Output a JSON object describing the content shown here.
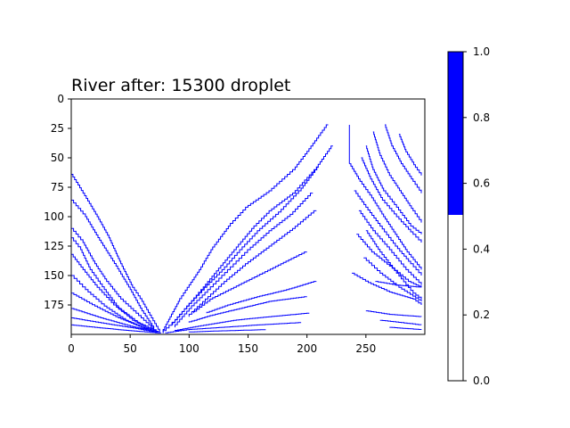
{
  "chart_data": {
    "type": "heatmap",
    "title": "River after: 15300 droplet",
    "xlabel": "",
    "ylabel": "",
    "xlim": [
      0,
      300
    ],
    "ylim": [
      200,
      0
    ],
    "x_ticks": [
      0,
      50,
      100,
      150,
      200,
      250
    ],
    "y_ticks": [
      0,
      25,
      50,
      75,
      100,
      125,
      150,
      175
    ],
    "grid": false,
    "colormap": {
      "colors": [
        "#ffffff",
        "#0000ff"
      ],
      "boundary": 0.5
    },
    "colorbar": {
      "range": [
        0.0,
        1.0
      ],
      "ticks": [
        "0.0",
        "0.2",
        "0.4",
        "0.6",
        "0.8",
        "1.0"
      ]
    },
    "river_paths": [
      [
        [
          0,
          64
        ],
        [
          10,
          80
        ],
        [
          22,
          100
        ],
        [
          32,
          118
        ],
        [
          42,
          140
        ],
        [
          52,
          160
        ],
        [
          60,
          172
        ],
        [
          68,
          186
        ],
        [
          75,
          198
        ]
      ],
      [
        [
          0,
          86
        ],
        [
          12,
          100
        ],
        [
          24,
          120
        ],
        [
          38,
          142
        ],
        [
          50,
          162
        ],
        [
          60,
          180
        ],
        [
          70,
          195
        ]
      ],
      [
        [
          0,
          110
        ],
        [
          10,
          122
        ],
        [
          20,
          140
        ],
        [
          30,
          155
        ],
        [
          42,
          170
        ],
        [
          55,
          182
        ],
        [
          70,
          196
        ]
      ],
      [
        [
          0,
          118
        ],
        [
          8,
          128
        ],
        [
          16,
          145
        ],
        [
          28,
          162
        ],
        [
          40,
          178
        ],
        [
          56,
          190
        ],
        [
          72,
          197
        ]
      ],
      [
        [
          0,
          132
        ],
        [
          10,
          145
        ],
        [
          22,
          160
        ],
        [
          36,
          175
        ],
        [
          52,
          188
        ],
        [
          68,
          197
        ]
      ],
      [
        [
          0,
          150
        ],
        [
          12,
          162
        ],
        [
          28,
          176
        ],
        [
          46,
          188
        ],
        [
          64,
          196
        ]
      ],
      [
        [
          0,
          165
        ],
        [
          20,
          176
        ],
        [
          40,
          186
        ],
        [
          60,
          194
        ],
        [
          74,
          198
        ]
      ],
      [
        [
          0,
          178
        ],
        [
          25,
          186
        ],
        [
          50,
          193
        ],
        [
          72,
          198
        ]
      ],
      [
        [
          0,
          186
        ],
        [
          30,
          191
        ],
        [
          55,
          195
        ],
        [
          75,
          199
        ]
      ],
      [
        [
          0,
          192
        ],
        [
          40,
          196
        ],
        [
          76,
          199
        ]
      ],
      [
        [
          218,
          22
        ],
        [
          205,
          40
        ],
        [
          190,
          60
        ],
        [
          170,
          78
        ],
        [
          150,
          92
        ],
        [
          135,
          108
        ],
        [
          120,
          128
        ],
        [
          110,
          145
        ],
        [
          100,
          160
        ],
        [
          92,
          172
        ],
        [
          85,
          185
        ],
        [
          78,
          198
        ]
      ],
      [
        [
          222,
          40
        ],
        [
          208,
          60
        ],
        [
          190,
          80
        ],
        [
          170,
          95
        ],
        [
          155,
          110
        ],
        [
          140,
          128
        ],
        [
          125,
          146
        ],
        [
          112,
          162
        ],
        [
          100,
          176
        ],
        [
          88,
          190
        ],
        [
          78,
          199
        ]
      ],
      [
        [
          210,
          58
        ],
        [
          195,
          78
        ],
        [
          178,
          96
        ],
        [
          160,
          112
        ],
        [
          145,
          128
        ],
        [
          130,
          145
        ],
        [
          115,
          160
        ],
        [
          100,
          176
        ],
        [
          86,
          192
        ]
      ],
      [
        [
          205,
          80
        ],
        [
          188,
          98
        ],
        [
          170,
          112
        ],
        [
          152,
          128
        ],
        [
          135,
          145
        ],
        [
          118,
          162
        ],
        [
          102,
          178
        ],
        [
          88,
          194
        ]
      ],
      [
        [
          208,
          95
        ],
        [
          190,
          110
        ],
        [
          170,
          125
        ],
        [
          150,
          140
        ],
        [
          132,
          155
        ],
        [
          116,
          170
        ],
        [
          100,
          185
        ]
      ],
      [
        [
          200,
          130
        ],
        [
          180,
          140
        ],
        [
          160,
          150
        ],
        [
          140,
          160
        ],
        [
          120,
          170
        ],
        [
          104,
          182
        ]
      ],
      [
        [
          208,
          155
        ],
        [
          185,
          162
        ],
        [
          160,
          168
        ],
        [
          135,
          175
        ],
        [
          115,
          182
        ]
      ],
      [
        [
          200,
          168
        ],
        [
          170,
          172
        ],
        [
          145,
          178
        ],
        [
          120,
          184
        ],
        [
          100,
          190
        ]
      ],
      [
        [
          202,
          182
        ],
        [
          170,
          185
        ],
        [
          140,
          188
        ],
        [
          110,
          193
        ],
        [
          88,
          197
        ]
      ],
      [
        [
          195,
          190
        ],
        [
          160,
          192
        ],
        [
          130,
          194
        ],
        [
          100,
          196
        ],
        [
          80,
          199
        ]
      ],
      [
        [
          165,
          196
        ],
        [
          130,
          197
        ],
        [
          100,
          198
        ]
      ],
      [
        [
          236,
          22
        ],
        [
          236,
          55
        ]
      ],
      [
        [
          236,
          55
        ],
        [
          245,
          70
        ],
        [
          255,
          84
        ],
        [
          265,
          100
        ],
        [
          275,
          115
        ],
        [
          285,
          130
        ],
        [
          297,
          145
        ]
      ],
      [
        [
          240,
          78
        ],
        [
          250,
          92
        ],
        [
          262,
          108
        ],
        [
          275,
          125
        ],
        [
          288,
          140
        ],
        [
          297,
          150
        ]
      ],
      [
        [
          244,
          95
        ],
        [
          256,
          112
        ],
        [
          270,
          128
        ],
        [
          284,
          145
        ],
        [
          297,
          158
        ]
      ],
      [
        [
          250,
          112
        ],
        [
          262,
          130
        ],
        [
          276,
          148
        ],
        [
          290,
          165
        ],
        [
          297,
          170
        ]
      ],
      [
        [
          242,
          115
        ],
        [
          255,
          130
        ],
        [
          270,
          142
        ],
        [
          286,
          155
        ],
        [
          297,
          160
        ]
      ],
      [
        [
          248,
          135
        ],
        [
          262,
          148
        ],
        [
          278,
          160
        ],
        [
          297,
          172
        ]
      ],
      [
        [
          238,
          148
        ],
        [
          252,
          156
        ],
        [
          270,
          164
        ],
        [
          290,
          170
        ],
        [
          297,
          175
        ]
      ],
      [
        [
          266,
          22
        ],
        [
          272,
          40
        ],
        [
          280,
          55
        ],
        [
          290,
          70
        ],
        [
          297,
          80
        ]
      ],
      [
        [
          256,
          28
        ],
        [
          262,
          48
        ],
        [
          270,
          65
        ],
        [
          280,
          80
        ],
        [
          290,
          95
        ],
        [
          297,
          105
        ]
      ],
      [
        [
          250,
          40
        ],
        [
          256,
          60
        ],
        [
          265,
          78
        ],
        [
          276,
          92
        ],
        [
          288,
          108
        ],
        [
          297,
          115
        ]
      ],
      [
        [
          246,
          50
        ],
        [
          254,
          68
        ],
        [
          264,
          86
        ],
        [
          276,
          100
        ],
        [
          290,
          115
        ],
        [
          297,
          122
        ]
      ],
      [
        [
          278,
          30
        ],
        [
          284,
          45
        ],
        [
          292,
          58
        ],
        [
          297,
          65
        ]
      ],
      [
        [
          258,
          155
        ],
        [
          275,
          158
        ],
        [
          297,
          160
        ]
      ],
      [
        [
          250,
          180
        ],
        [
          270,
          183
        ],
        [
          297,
          185
        ]
      ],
      [
        [
          262,
          188
        ],
        [
          280,
          190
        ],
        [
          297,
          192
        ]
      ],
      [
        [
          270,
          194
        ],
        [
          297,
          196
        ]
      ]
    ]
  }
}
